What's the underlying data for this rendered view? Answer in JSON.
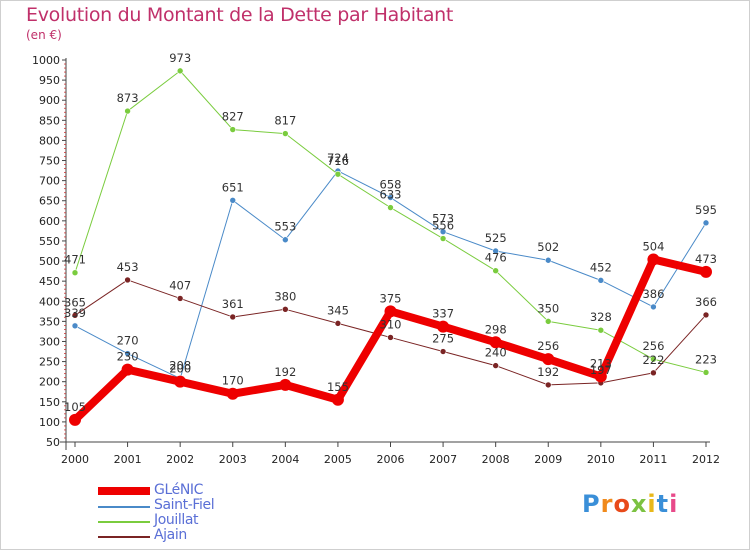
{
  "title": "Evolution du Montant de la Dette par Habitant",
  "unit": "(en €)",
  "logo": "Proxiti",
  "chart_data": {
    "type": "line",
    "x": [
      "2000",
      "2001",
      "2002",
      "2003",
      "2004",
      "2005",
      "2006",
      "2007",
      "2008",
      "2009",
      "2010",
      "2011",
      "2012"
    ],
    "ylim": [
      50,
      1000
    ],
    "yticks": [
      50,
      100,
      150,
      200,
      250,
      300,
      350,
      400,
      450,
      500,
      550,
      600,
      650,
      700,
      750,
      800,
      850,
      900,
      950,
      1000
    ],
    "grid": false,
    "legend": "bottom-left",
    "series": [
      {
        "name": "GLéNIC",
        "color": "#ee0000",
        "width": 8,
        "marker": 6,
        "labels": [
          "105",
          "230",
          "200",
          "170",
          "192",
          "155",
          "375",
          "337",
          "298",
          "256",
          "213",
          "504",
          "473"
        ],
        "values": [
          105,
          230,
          200,
          170,
          192,
          155,
          375,
          337,
          298,
          256,
          213,
          504,
          473
        ]
      },
      {
        "name": "Saint-Fiel",
        "color": "#4a8ac8",
        "width": 1,
        "marker": 3,
        "labels": [
          "339",
          "270",
          "208",
          "651",
          "553",
          "724",
          "658",
          "573",
          "525",
          "502",
          "452",
          "386",
          "595"
        ],
        "values": [
          339,
          270,
          208,
          651,
          553,
          724,
          658,
          573,
          525,
          502,
          452,
          386,
          595
        ]
      },
      {
        "name": "Jouillat",
        "color": "#7acc3e",
        "width": 1,
        "marker": 3,
        "labels": [
          "471",
          "873",
          "973",
          "827",
          "817",
          "716",
          "633",
          "556",
          "476",
          "350",
          "328",
          "256",
          "223"
        ],
        "values": [
          471,
          873,
          973,
          827,
          817,
          716,
          633,
          556,
          476,
          350,
          328,
          256,
          223
        ]
      },
      {
        "name": "Ajain",
        "color": "#7a2424",
        "width": 1,
        "marker": 3,
        "labels": [
          "365",
          "453",
          "407",
          "361",
          "380",
          "345",
          "310",
          "275",
          "240",
          "192",
          "197",
          "222",
          "366"
        ],
        "values": [
          365,
          453,
          407,
          361,
          380,
          345,
          310,
          275,
          240,
          192,
          197,
          222,
          366
        ]
      }
    ]
  }
}
